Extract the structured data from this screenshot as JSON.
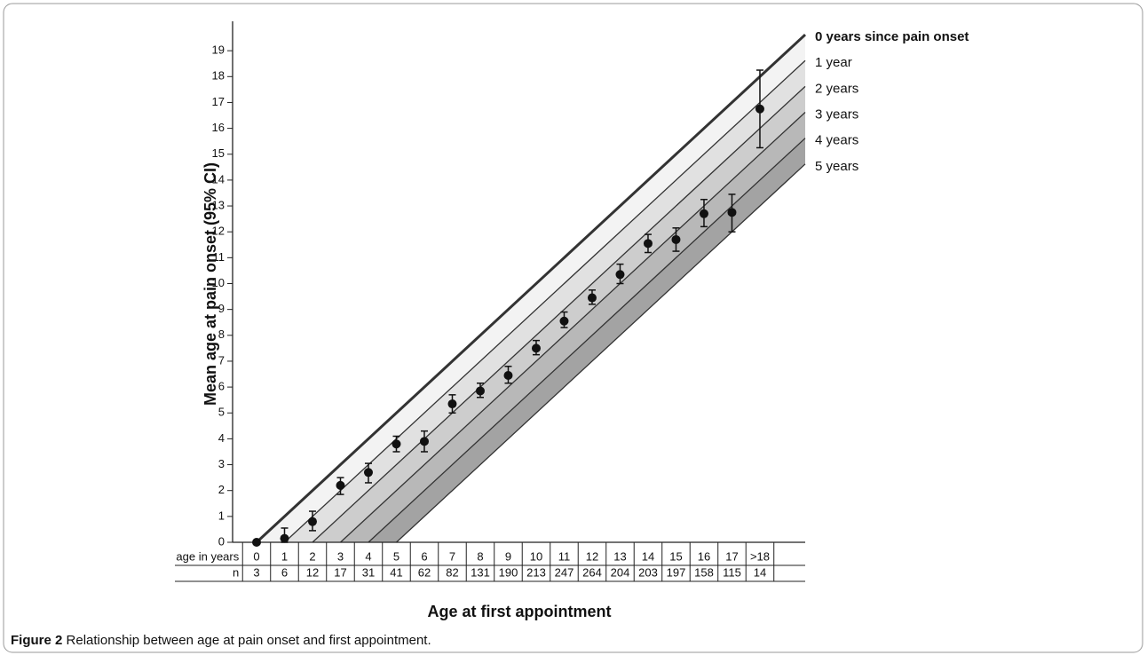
{
  "caption": {
    "label": "Figure 2",
    "text": "Relationship between age at pain onset and first appointment."
  },
  "chart_data": {
    "type": "errorbar",
    "y_label": "Mean age at pain onset (95% CI)",
    "x_label": "Age at first appointment",
    "row_labels": {
      "age": "age in years",
      "n": "n"
    },
    "categories": [
      "0",
      "1",
      "2",
      "3",
      "4",
      "5",
      "6",
      "7",
      "8",
      "9",
      "10",
      "11",
      "12",
      "13",
      "14",
      "15",
      "16",
      "17",
      ">18"
    ],
    "n": [
      3,
      6,
      12,
      17,
      31,
      41,
      62,
      82,
      131,
      190,
      213,
      247,
      264,
      204,
      203,
      197,
      158,
      115,
      14
    ],
    "values": [
      0,
      0.15,
      0.8,
      2.2,
      2.7,
      3.8,
      3.9,
      5.35,
      5.85,
      6.45,
      7.5,
      8.55,
      9.45,
      10.35,
      11.55,
      11.7,
      12.7,
      12.75,
      16.75
    ],
    "ci_lower": [
      null,
      0,
      0.45,
      1.85,
      2.3,
      3.5,
      3.5,
      5.0,
      5.6,
      6.15,
      7.25,
      8.3,
      9.2,
      10.0,
      11.2,
      11.25,
      12.2,
      12.0,
      15.25
    ],
    "ci_upper": [
      null,
      0.55,
      1.2,
      2.5,
      3.05,
      4.1,
      4.3,
      5.7,
      6.15,
      6.8,
      7.8,
      8.9,
      9.75,
      10.75,
      11.9,
      12.15,
      13.25,
      13.45,
      18.25
    ],
    "color": "#111111",
    "reference_lines": [
      {
        "label": "0 years since pain onset",
        "offset": 0
      },
      {
        "label": "1 year",
        "offset": 1
      },
      {
        "label": "2 years",
        "offset": 2
      },
      {
        "label": "3 years",
        "offset": 3
      },
      {
        "label": "4 years",
        "offset": 4
      },
      {
        "label": "5 years",
        "offset": 5
      }
    ],
    "band_colors": [
      "#f3f3f3",
      "#e1e1e1",
      "#cdcdcd",
      "#b8b8b8",
      "#a3a3a3"
    ],
    "xlim": [
      -0.857,
      19.62
    ],
    "ylim": [
      0,
      20
    ],
    "yticks": [
      0,
      1,
      2,
      3,
      4,
      5,
      6,
      7,
      8,
      9,
      10,
      11,
      12,
      13,
      14,
      15,
      16,
      17,
      18,
      19
    ]
  }
}
